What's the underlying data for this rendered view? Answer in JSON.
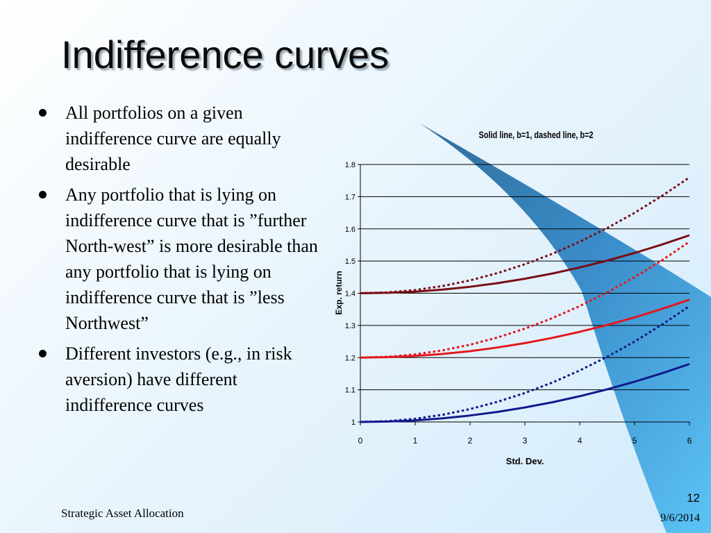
{
  "slide": {
    "title": "Indifference curves",
    "bullets": [
      "All portfolios on a given indifference curve are equally desirable",
      "Any portfolio that is lying on indifference curve that is ”further North-west” is more desirable than any portfolio that is lying on indifference curve that is ”less Northwest”",
      "Different investors (e.g., in risk aversion)  have different indifference curves"
    ],
    "footer_left": "Strategic Asset Allocation",
    "slide_number": "12",
    "date": "9/6/2014"
  },
  "chart_data": {
    "type": "line",
    "title": "Solid line, b=1, dashed line, b=2",
    "xlabel": "Std. Dev.",
    "ylabel": "Exp. return",
    "xlim": [
      0,
      6
    ],
    "ylim": [
      1,
      1.8
    ],
    "x_ticks": [
      "0",
      "1",
      "2",
      "3",
      "4",
      "5",
      "6"
    ],
    "y_ticks": [
      "1",
      "1.1",
      "1.2",
      "1.3",
      "1.4",
      "1.5",
      "1.6",
      "1.7",
      "1.8"
    ],
    "grid": "horizontal",
    "legend": "none",
    "x": [
      0,
      0.5,
      1,
      1.5,
      2,
      2.5,
      3,
      3.5,
      4,
      4.5,
      5,
      5.5,
      6
    ],
    "series": [
      {
        "style": "solid",
        "color": "#7a0c14",
        "values": [
          1.4,
          1.4013,
          1.405,
          1.4113,
          1.42,
          1.4313,
          1.445,
          1.4613,
          1.48,
          1.5013,
          1.525,
          1.5513,
          1.58
        ]
      },
      {
        "style": "dashed",
        "color": "#7a0c14",
        "values": [
          1.4,
          1.4025,
          1.41,
          1.4225,
          1.44,
          1.4625,
          1.49,
          1.5225,
          1.56,
          1.6025,
          1.65,
          1.7025,
          1.76
        ]
      },
      {
        "style": "solid",
        "color": "#e3171c",
        "values": [
          1.2,
          1.2013,
          1.205,
          1.2113,
          1.22,
          1.2313,
          1.245,
          1.2613,
          1.28,
          1.3013,
          1.325,
          1.3513,
          1.38
        ]
      },
      {
        "style": "dashed",
        "color": "#e3171c",
        "values": [
          1.2,
          1.2025,
          1.21,
          1.2225,
          1.24,
          1.2625,
          1.29,
          1.3225,
          1.36,
          1.4025,
          1.45,
          1.5025,
          1.56
        ]
      },
      {
        "style": "solid",
        "color": "#101a8c",
        "values": [
          1.0,
          1.0013,
          1.005,
          1.0113,
          1.02,
          1.0313,
          1.045,
          1.0613,
          1.08,
          1.1013,
          1.125,
          1.1513,
          1.18
        ]
      },
      {
        "style": "dashed",
        "color": "#101a8c",
        "values": [
          1.0,
          1.0025,
          1.01,
          1.0225,
          1.04,
          1.0625,
          1.09,
          1.1225,
          1.16,
          1.2025,
          1.25,
          1.3025,
          1.36
        ]
      }
    ]
  }
}
